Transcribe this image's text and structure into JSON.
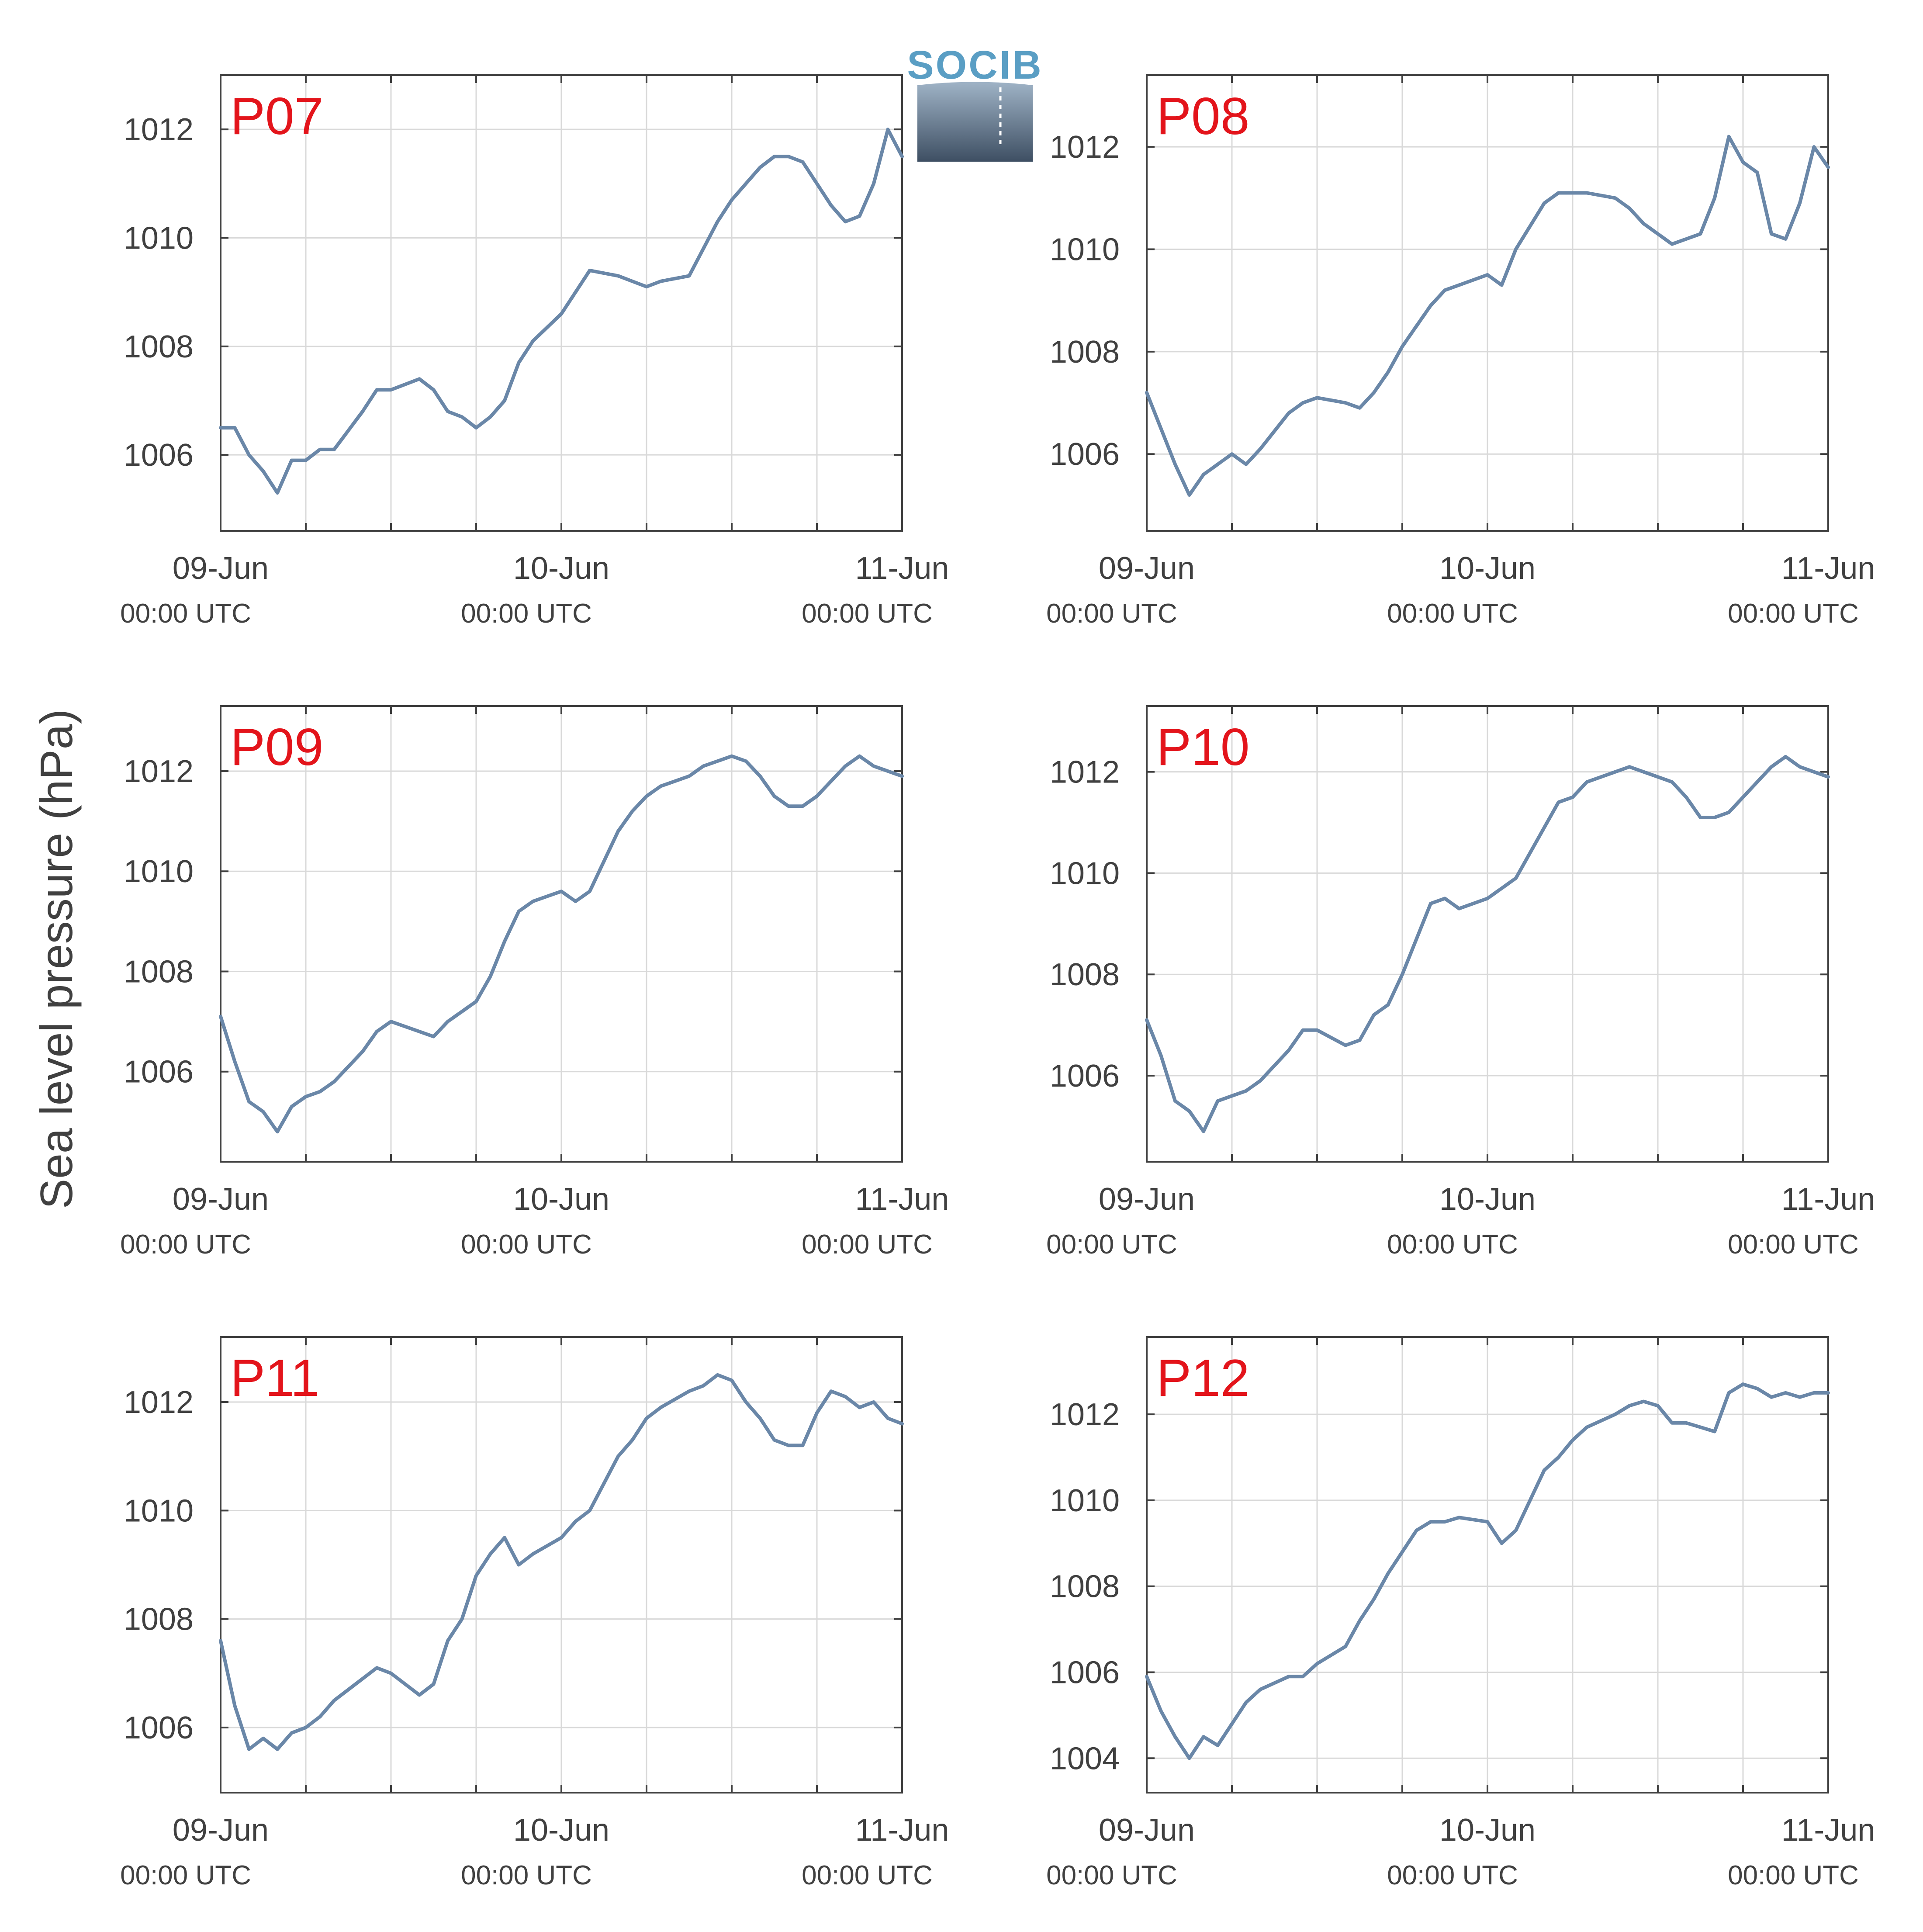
{
  "ylabel": "Sea level pressure (hPa)",
  "logo_text": "SOCIB",
  "colors": {
    "line": "#6a87a8",
    "title": "#e3141b",
    "grid": "#d9d9d9",
    "axis": "#404040"
  },
  "chart_data": [
    {
      "type": "line",
      "title": "P07",
      "x_ticks": [
        {
          "date": "09-Jun",
          "time": "00:00 UTC"
        },
        {
          "date": "10-Jun",
          "time": "00:00 UTC"
        },
        {
          "date": "11-Jun",
          "time": "00:00 UTC"
        }
      ],
      "xlim": [
        "09-Jun 00:00",
        "11-Jun 00:00"
      ],
      "y_ticks": [
        1006,
        1008,
        1010,
        1012
      ],
      "ylim": [
        1004.6,
        1013.0
      ],
      "grid": true,
      "x_hours": [
        0,
        1,
        2,
        3,
        4,
        5,
        6,
        7,
        8,
        10,
        11,
        12,
        14,
        15,
        16,
        17,
        18,
        19,
        20,
        21,
        22,
        24,
        25,
        26,
        28,
        29,
        30,
        31,
        33,
        34,
        35,
        36,
        37,
        38,
        39,
        40,
        41,
        42,
        43,
        44,
        45,
        46,
        47,
        48
      ],
      "values": [
        1006.5,
        1006.5,
        1006.0,
        1005.7,
        1005.3,
        1005.9,
        1005.9,
        1006.1,
        1006.1,
        1006.8,
        1007.2,
        1007.2,
        1007.4,
        1007.2,
        1006.8,
        1006.7,
        1006.5,
        1006.7,
        1007.0,
        1007.7,
        1008.1,
        1008.6,
        1009.0,
        1009.4,
        1009.3,
        1009.2,
        1009.1,
        1009.2,
        1009.3,
        1009.8,
        1010.3,
        1010.7,
        1011.0,
        1011.3,
        1011.5,
        1011.5,
        1011.4,
        1011.0,
        1010.6,
        1010.3,
        1010.4,
        1011.0,
        1012.0,
        1011.5
      ]
    },
    {
      "type": "line",
      "title": "P08",
      "x_ticks": [
        {
          "date": "09-Jun",
          "time": "00:00 UTC"
        },
        {
          "date": "10-Jun",
          "time": "00:00 UTC"
        },
        {
          "date": "11-Jun",
          "time": "00:00 UTC"
        }
      ],
      "xlim": [
        "09-Jun 00:00",
        "11-Jun 00:00"
      ],
      "y_ticks": [
        1006,
        1008,
        1010,
        1012
      ],
      "ylim": [
        1004.5,
        1013.4
      ],
      "grid": true,
      "x_hours": [
        0,
        1,
        2,
        3,
        4,
        5,
        6,
        7,
        8,
        10,
        11,
        12,
        14,
        15,
        16,
        17,
        18,
        19,
        20,
        21,
        22,
        24,
        25,
        26,
        28,
        29,
        30,
        31,
        33,
        34,
        35,
        36,
        37,
        38,
        39,
        40,
        41,
        42,
        43,
        44,
        45,
        46,
        47,
        48
      ],
      "values": [
        1007.2,
        1006.5,
        1005.8,
        1005.2,
        1005.6,
        1005.8,
        1006.0,
        1005.8,
        1006.1,
        1006.8,
        1007.0,
        1007.1,
        1007.0,
        1006.9,
        1007.2,
        1007.6,
        1008.1,
        1008.5,
        1008.9,
        1009.2,
        1009.3,
        1009.5,
        1009.3,
        1010.0,
        1010.9,
        1011.1,
        1011.1,
        1011.1,
        1011.0,
        1010.8,
        1010.5,
        1010.3,
        1010.1,
        1010.2,
        1010.3,
        1011.0,
        1012.2,
        1011.7,
        1011.5,
        1010.3,
        1010.2,
        1010.9,
        1012.0,
        1011.6
      ]
    },
    {
      "type": "line",
      "title": "P09",
      "x_ticks": [
        {
          "date": "09-Jun",
          "time": "00:00 UTC"
        },
        {
          "date": "10-Jun",
          "time": "00:00 UTC"
        },
        {
          "date": "11-Jun",
          "time": "00:00 UTC"
        }
      ],
      "xlim": [
        "09-Jun 00:00",
        "11-Jun 00:00"
      ],
      "y_ticks": [
        1006,
        1008,
        1010,
        1012
      ],
      "ylim": [
        1004.2,
        1013.3
      ],
      "grid": true,
      "x_hours": [
        0,
        1,
        2,
        3,
        4,
        5,
        6,
        7,
        8,
        10,
        11,
        12,
        14,
        15,
        16,
        17,
        18,
        19,
        20,
        21,
        22,
        24,
        25,
        26,
        28,
        29,
        30,
        31,
        33,
        34,
        35,
        36,
        37,
        38,
        39,
        40,
        41,
        42,
        43,
        44,
        45,
        46,
        47,
        48
      ],
      "values": [
        1007.1,
        1006.2,
        1005.4,
        1005.2,
        1004.8,
        1005.3,
        1005.5,
        1005.6,
        1005.8,
        1006.4,
        1006.8,
        1007.0,
        1006.8,
        1006.7,
        1007.0,
        1007.2,
        1007.4,
        1007.9,
        1008.6,
        1009.2,
        1009.4,
        1009.6,
        1009.4,
        1009.6,
        1010.8,
        1011.2,
        1011.5,
        1011.7,
        1011.9,
        1012.1,
        1012.2,
        1012.3,
        1012.2,
        1011.9,
        1011.5,
        1011.3,
        1011.3,
        1011.5,
        1011.8,
        1012.1,
        1012.3,
        1012.1,
        1012.0,
        1011.9
      ]
    },
    {
      "type": "line",
      "title": "P10",
      "x_ticks": [
        {
          "date": "09-Jun",
          "time": "00:00 UTC"
        },
        {
          "date": "10-Jun",
          "time": "00:00 UTC"
        },
        {
          "date": "11-Jun",
          "time": "00:00 UTC"
        }
      ],
      "xlim": [
        "09-Jun 00:00",
        "11-Jun 00:00"
      ],
      "y_ticks": [
        1006,
        1008,
        1010,
        1012
      ],
      "ylim": [
        1004.3,
        1013.3
      ],
      "grid": true,
      "x_hours": [
        0,
        1,
        2,
        3,
        4,
        5,
        6,
        7,
        8,
        10,
        11,
        12,
        14,
        15,
        16,
        17,
        18,
        19,
        20,
        21,
        22,
        24,
        25,
        26,
        28,
        29,
        30,
        31,
        33,
        34,
        35,
        36,
        37,
        38,
        39,
        40,
        41,
        42,
        43,
        44,
        45,
        46,
        47,
        48
      ],
      "values": [
        1007.1,
        1006.4,
        1005.5,
        1005.3,
        1004.9,
        1005.5,
        1005.6,
        1005.7,
        1005.9,
        1006.5,
        1006.9,
        1006.9,
        1006.6,
        1006.7,
        1007.2,
        1007.4,
        1008.0,
        1008.7,
        1009.4,
        1009.5,
        1009.3,
        1009.5,
        1009.7,
        1009.9,
        1010.9,
        1011.4,
        1011.5,
        1011.8,
        1012.0,
        1012.1,
        1012.0,
        1011.9,
        1011.8,
        1011.5,
        1011.1,
        1011.1,
        1011.2,
        1011.5,
        1011.8,
        1012.1,
        1012.3,
        1012.1,
        1012.0,
        1011.9
      ]
    },
    {
      "type": "line",
      "title": "P11",
      "x_ticks": [
        {
          "date": "09-Jun",
          "time": "00:00 UTC"
        },
        {
          "date": "10-Jun",
          "time": "00:00 UTC"
        },
        {
          "date": "11-Jun",
          "time": "00:00 UTC"
        }
      ],
      "xlim": [
        "09-Jun 00:00",
        "11-Jun 00:00"
      ],
      "y_ticks": [
        1006,
        1008,
        1010,
        1012
      ],
      "ylim": [
        1004.8,
        1013.2
      ],
      "grid": true,
      "x_hours": [
        0,
        1,
        2,
        3,
        4,
        5,
        6,
        7,
        8,
        10,
        11,
        12,
        14,
        15,
        16,
        17,
        18,
        19,
        20,
        21,
        22,
        24,
        25,
        26,
        28,
        29,
        30,
        31,
        33,
        34,
        35,
        36,
        37,
        38,
        39,
        40,
        41,
        42,
        43,
        44,
        45,
        46,
        47,
        48
      ],
      "values": [
        1007.6,
        1006.4,
        1005.6,
        1005.8,
        1005.6,
        1005.9,
        1006.0,
        1006.2,
        1006.5,
        1006.9,
        1007.1,
        1007.0,
        1006.6,
        1006.8,
        1007.6,
        1008.0,
        1008.8,
        1009.2,
        1009.5,
        1009.0,
        1009.2,
        1009.5,
        1009.8,
        1010.0,
        1011.0,
        1011.3,
        1011.7,
        1011.9,
        1012.2,
        1012.3,
        1012.5,
        1012.4,
        1012.0,
        1011.7,
        1011.3,
        1011.2,
        1011.2,
        1011.8,
        1012.2,
        1012.1,
        1011.9,
        1012.0,
        1011.7,
        1011.6
      ]
    },
    {
      "type": "line",
      "title": "P12",
      "x_ticks": [
        {
          "date": "09-Jun",
          "time": "00:00 UTC"
        },
        {
          "date": "10-Jun",
          "time": "00:00 UTC"
        },
        {
          "date": "11-Jun",
          "time": "00:00 UTC"
        }
      ],
      "xlim": [
        "09-Jun 00:00",
        "11-Jun 00:00"
      ],
      "y_ticks": [
        1004,
        1006,
        1008,
        1010,
        1012
      ],
      "ylim": [
        1003.2,
        1013.8
      ],
      "grid": true,
      "x_hours": [
        0,
        1,
        2,
        3,
        4,
        5,
        6,
        7,
        8,
        10,
        11,
        12,
        14,
        15,
        16,
        17,
        18,
        19,
        20,
        21,
        22,
        24,
        25,
        26,
        28,
        29,
        30,
        31,
        33,
        34,
        35,
        36,
        37,
        38,
        39,
        40,
        41,
        42,
        43,
        44,
        45,
        46,
        47,
        48
      ],
      "values": [
        1005.9,
        1005.1,
        1004.5,
        1004.0,
        1004.5,
        1004.3,
        1004.8,
        1005.3,
        1005.6,
        1005.9,
        1005.9,
        1006.2,
        1006.6,
        1007.2,
        1007.7,
        1008.3,
        1008.8,
        1009.3,
        1009.5,
        1009.5,
        1009.6,
        1009.5,
        1009.0,
        1009.3,
        1010.7,
        1011.0,
        1011.4,
        1011.7,
        1012.0,
        1012.2,
        1012.3,
        1012.2,
        1011.8,
        1011.8,
        1011.7,
        1011.6,
        1012.5,
        1012.7,
        1012.6,
        1012.4,
        1012.5,
        1012.4,
        1012.5,
        1012.5
      ]
    }
  ]
}
